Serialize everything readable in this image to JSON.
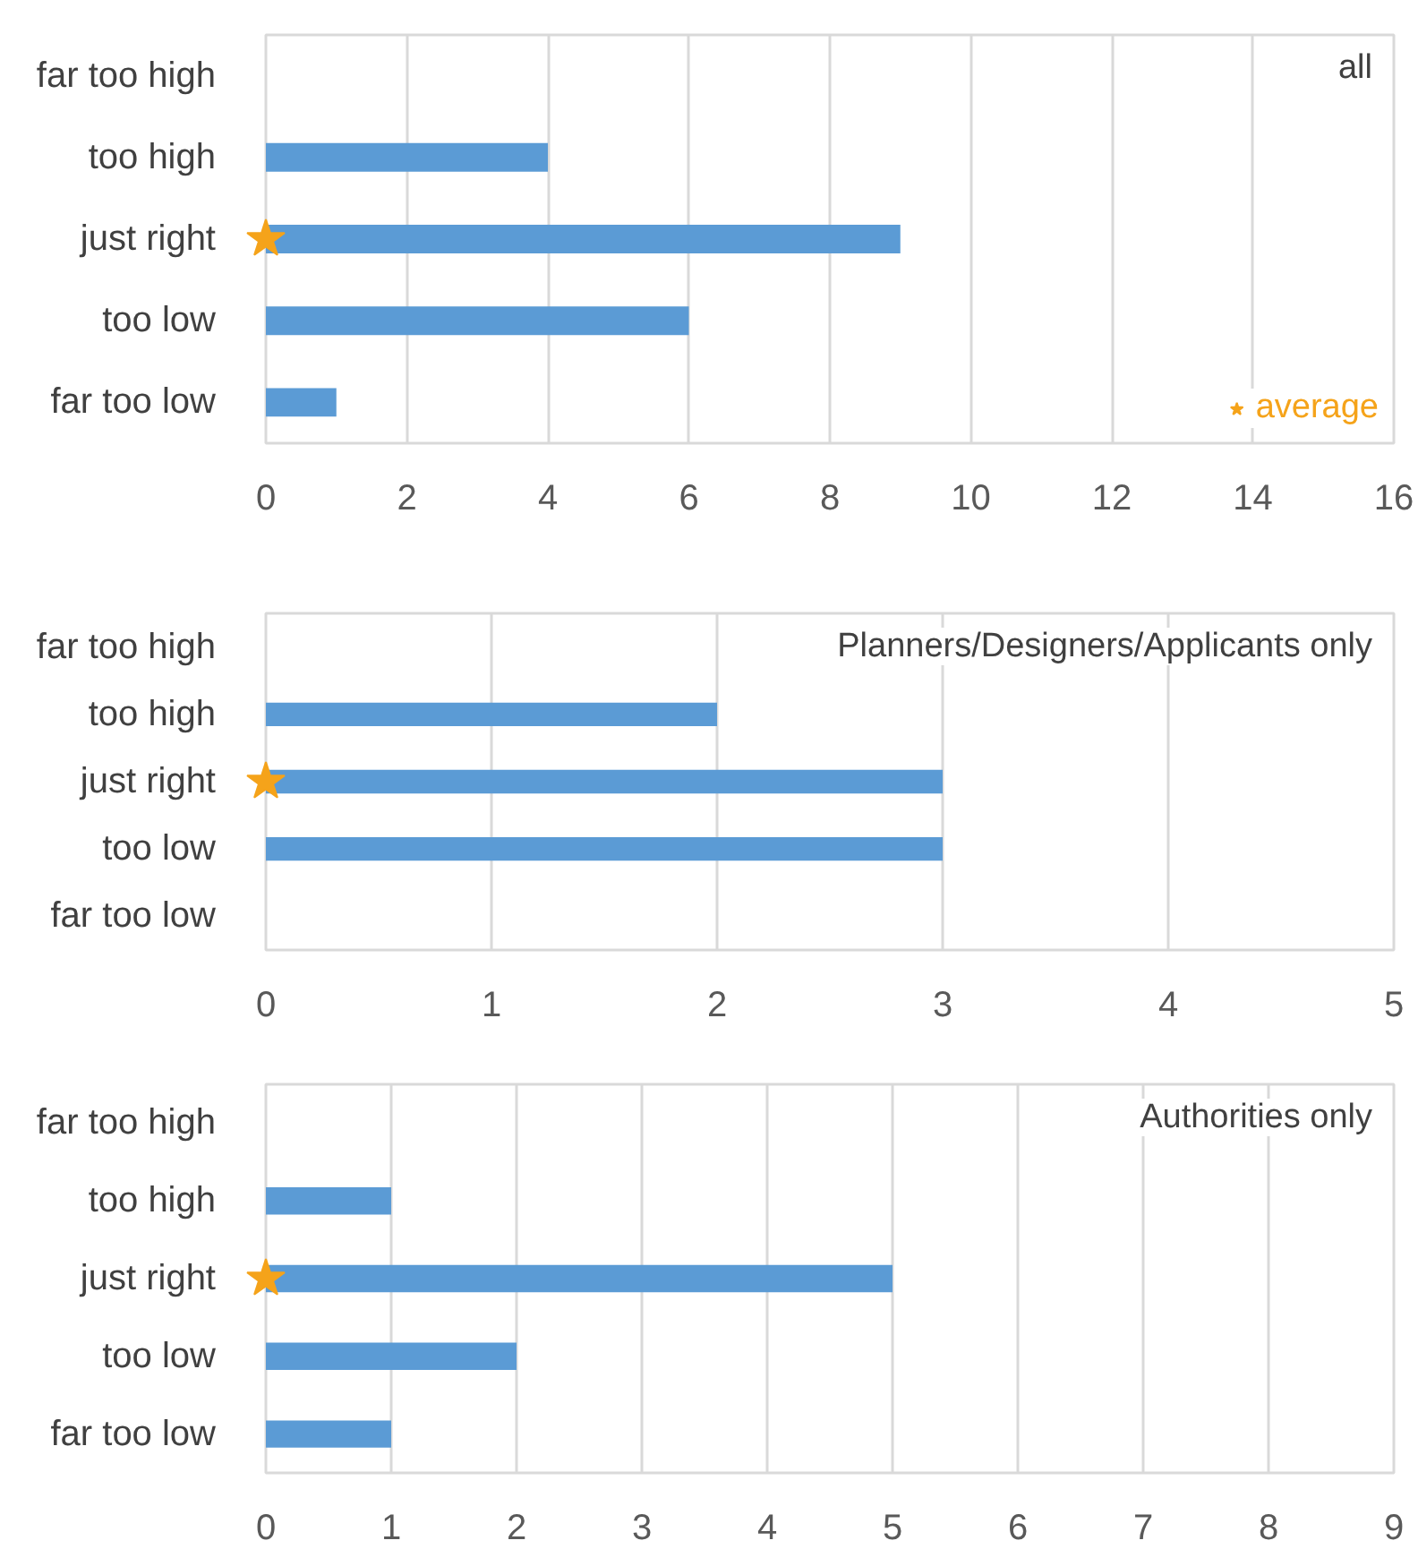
{
  "chart_data": [
    {
      "type": "bar",
      "orientation": "horizontal",
      "categories": [
        "far too high",
        "too high",
        "just right",
        "too low",
        "far too low"
      ],
      "xlim": [
        0,
        16
      ],
      "xticks": [
        0,
        2,
        4,
        6,
        8,
        10,
        12,
        14,
        16
      ],
      "grid": "x",
      "legend": "bottom right",
      "annotations": [
        "all"
      ],
      "series": [
        {
          "color": "#5b9bd5",
          "values": [
            0,
            4,
            9,
            6,
            1
          ]
        },
        {
          "name": "average",
          "type": "scatter",
          "marker": "star",
          "color": "#f5a31a",
          "x": [
            "just right"
          ],
          "values": [
            0
          ]
        }
      ]
    },
    {
      "type": "bar",
      "orientation": "horizontal",
      "categories": [
        "far too high",
        "too high",
        "just right",
        "too low",
        "far too low"
      ],
      "xlim": [
        0,
        5
      ],
      "xticks": [
        0,
        1,
        2,
        3,
        4,
        5
      ],
      "grid": "x",
      "annotations": [
        "Planners/Designers/Applicants only"
      ],
      "series": [
        {
          "color": "#5b9bd5",
          "values": [
            0,
            2,
            3,
            3,
            0
          ]
        },
        {
          "type": "scatter",
          "marker": "star",
          "color": "#f5a31a",
          "x": [
            "just right"
          ],
          "values": [
            0
          ]
        }
      ]
    },
    {
      "type": "bar",
      "orientation": "horizontal",
      "categories": [
        "far too high",
        "too high",
        "just right",
        "too low",
        "far too low"
      ],
      "xlim": [
        0,
        9
      ],
      "xticks": [
        0,
        1,
        2,
        3,
        4,
        5,
        6,
        7,
        8,
        9
      ],
      "grid": "x",
      "annotations": [
        "Authorities only"
      ],
      "series": [
        {
          "color": "#5b9bd5",
          "values": [
            0,
            1,
            5,
            2,
            1
          ]
        },
        {
          "type": "scatter",
          "marker": "star",
          "color": "#f5a31a",
          "x": [
            "just right"
          ],
          "values": [
            0
          ]
        }
      ]
    }
  ]
}
